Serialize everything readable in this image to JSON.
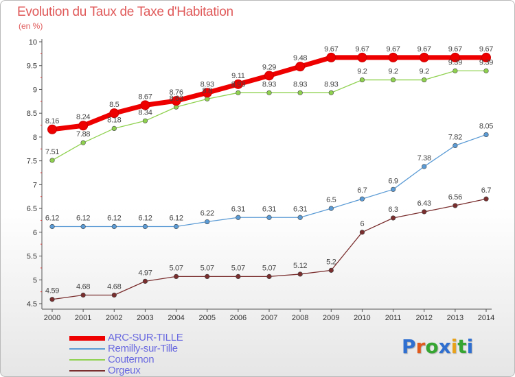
{
  "title": "Evolution du Taux de Taxe d'Habitation",
  "unit_label": "(en %)",
  "logo": {
    "text": "Proxiti",
    "letter_colors": [
      "#2f6fd0",
      "#e05a1c",
      "#36a532",
      "#2f6fd0",
      "#e8a21a",
      "#36a532",
      "#2f6fd0"
    ]
  },
  "chart_data": {
    "type": "line",
    "x": [
      "2000",
      "2001",
      "2002",
      "2003",
      "2004",
      "2005",
      "2006",
      "2007",
      "2008",
      "2009",
      "2010",
      "2011",
      "2012",
      "2013",
      "2014"
    ],
    "ylim": [
      4.5,
      10
    ],
    "yticks": [
      "4.5",
      "5",
      "5.5",
      "6",
      "6.5",
      "7",
      "7.5",
      "8",
      "8.5",
      "9",
      "9.5",
      "10"
    ],
    "grid": false,
    "legend_position": "bottom-left",
    "series": [
      {
        "name": "ARC-SUR-TILLE",
        "color": "#ee0000",
        "values": [
          8.16,
          8.24,
          8.5,
          8.67,
          8.76,
          8.93,
          9.11,
          9.29,
          9.48,
          9.67,
          9.67,
          9.67,
          9.67,
          9.67,
          9.67
        ],
        "labels": [
          "8.16",
          "8.24",
          "8.5",
          "8.67",
          "8.76",
          "8.93",
          "9.11",
          "9.29",
          "9.48",
          "9.67",
          "9.67",
          "9.67",
          "9.67",
          "9.67",
          "9.67"
        ]
      },
      {
        "name": "Remilly-sur-Tille",
        "color": "#5b9bd5",
        "values": [
          6.12,
          6.12,
          6.12,
          6.12,
          6.12,
          6.22,
          6.31,
          6.31,
          6.31,
          6.5,
          6.7,
          6.9,
          7.38,
          7.82,
          8.05
        ],
        "labels": [
          "6.12",
          "6.12",
          "6.12",
          "6.12",
          "6.12",
          "6.22",
          "6.31",
          "6.31",
          "6.31",
          "6.5",
          "6.7",
          "6.9",
          "7.38",
          "7.82",
          "8.05"
        ]
      },
      {
        "name": "Couternon",
        "color": "#8fd14f",
        "values": [
          7.51,
          7.88,
          8.18,
          8.34,
          8.63,
          8.8,
          8.93,
          8.93,
          8.93,
          8.93,
          9.2,
          9.2,
          9.2,
          9.39,
          9.39
        ],
        "labels": [
          "7.51",
          "7.88",
          "8.18",
          "8.34",
          "8.63",
          "8.8",
          "8.93",
          "8.93",
          "8.93",
          "8.93",
          "9.2",
          "9.2",
          "9.2",
          "9.39",
          "9.39"
        ]
      },
      {
        "name": "Orgeux",
        "color": "#7a2e2e",
        "values": [
          4.59,
          4.68,
          4.68,
          4.97,
          5.07,
          5.07,
          5.07,
          5.07,
          5.12,
          5.2,
          6,
          6.3,
          6.43,
          6.56,
          6.7
        ],
        "labels": [
          "4.59",
          "4.68",
          "4.68",
          "4.97",
          "5.07",
          "5.07",
          "5.07",
          "5.07",
          "5.12",
          "5.2",
          "6",
          "6.3",
          "6.43",
          "6.56",
          "6.7"
        ]
      }
    ]
  },
  "legend": [
    {
      "label": "ARC-SUR-TILLE",
      "color": "#ee0000",
      "text_color": "#6a6ae0"
    },
    {
      "label": "Remilly-sur-Tille",
      "color": "#5b9bd5",
      "text_color": "#6a6ae0"
    },
    {
      "label": "Couternon",
      "color": "#8fd14f",
      "text_color": "#6a6ae0"
    },
    {
      "label": "Orgeux",
      "color": "#7a2e2e",
      "text_color": "#6a6ae0"
    }
  ]
}
